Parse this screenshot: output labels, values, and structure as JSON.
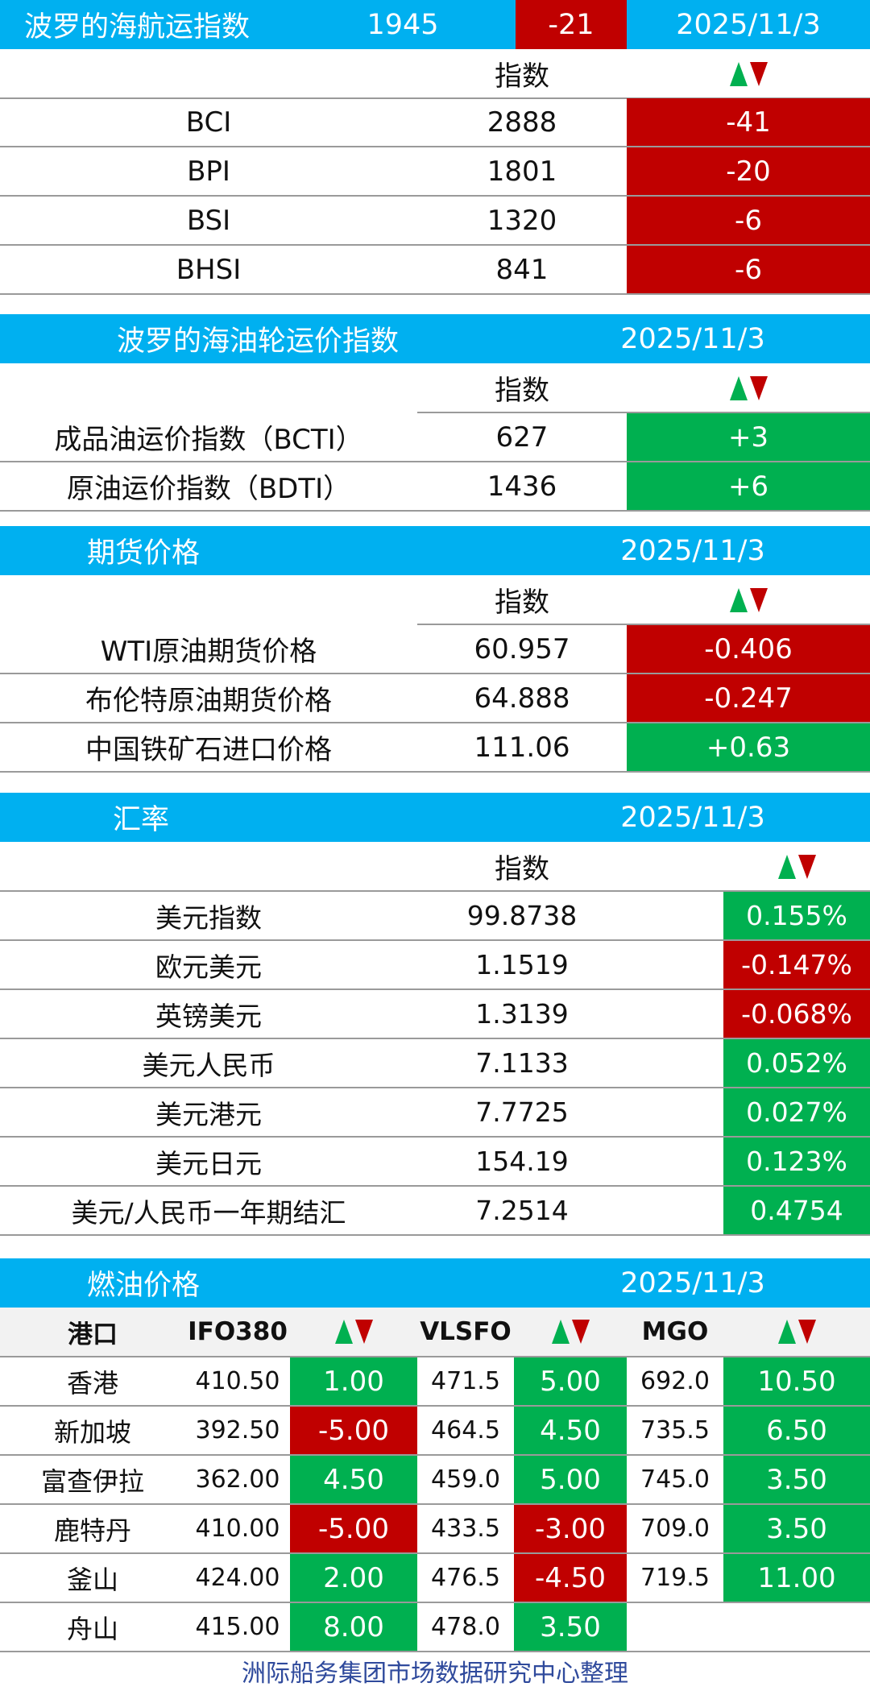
{
  "bdi": {
    "title": "波罗的海航运指数",
    "value": "1945",
    "change": "-21",
    "date": "2025/11/3",
    "col_index": "指数",
    "rows": [
      {
        "name": "BCI",
        "value": "2888",
        "change": "-41",
        "dir": "down"
      },
      {
        "name": "BPI",
        "value": "1801",
        "change": "-20",
        "dir": "down"
      },
      {
        "name": "BSI",
        "value": "1320",
        "change": "-6",
        "dir": "down"
      },
      {
        "name": "BHSI",
        "value": "841",
        "change": "-6",
        "dir": "down"
      }
    ]
  },
  "tanker": {
    "title": "波罗的海油轮运价指数",
    "date": "2025/11/3",
    "col_index": "指数",
    "rows": [
      {
        "name": "成品油运价指数（BCTI）",
        "value": "627",
        "change": "+3",
        "dir": "up"
      },
      {
        "name": "原油运价指数（BDTI）",
        "value": "1436",
        "change": "+6",
        "dir": "up"
      }
    ]
  },
  "futures": {
    "title": "期货价格",
    "date": "2025/11/3",
    "col_index": "指数",
    "rows": [
      {
        "name": "WTI原油期货价格",
        "value": "60.957",
        "change": "-0.406",
        "dir": "down"
      },
      {
        "name": "布伦特原油期货价格",
        "value": "64.888",
        "change": "-0.247",
        "dir": "down"
      },
      {
        "name": "中国铁矿石进口价格",
        "value": "111.06",
        "change": "+0.63",
        "dir": "up"
      }
    ]
  },
  "fx": {
    "title": "汇率",
    "date": "2025/11/3",
    "col_index": "指数",
    "rows": [
      {
        "name": "美元指数",
        "value": "99.8738",
        "change": "0.155%",
        "dir": "up"
      },
      {
        "name": "欧元美元",
        "value": "1.1519",
        "change": "-0.147%",
        "dir": "down"
      },
      {
        "name": "英镑美元",
        "value": "1.3139",
        "change": "-0.068%",
        "dir": "down"
      },
      {
        "name": "美元人民币",
        "value": "7.1133",
        "change": "0.052%",
        "dir": "up"
      },
      {
        "name": "美元港元",
        "value": "7.7725",
        "change": "0.027%",
        "dir": "up"
      },
      {
        "name": "美元日元",
        "value": "154.19",
        "change": "0.123%",
        "dir": "up"
      },
      {
        "name": "美元/人民币一年期结汇",
        "value": "7.2514",
        "change": "0.4754",
        "dir": "up"
      }
    ]
  },
  "fuel": {
    "title": "燃油价格",
    "date": "2025/11/3",
    "headers": {
      "port": "港口",
      "ifo": "IFO380",
      "vlsfo": "VLSFO",
      "mgo": "MGO"
    },
    "rows": [
      {
        "port": "香港",
        "ifo": "410.50",
        "ifo_chg": "1.00",
        "ifo_dir": "up",
        "vlsfo": "471.5",
        "vlsfo_chg": "5.00",
        "vlsfo_dir": "up",
        "mgo": "692.0",
        "mgo_chg": "10.50",
        "mgo_dir": "up"
      },
      {
        "port": "新加坡",
        "ifo": "392.50",
        "ifo_chg": "-5.00",
        "ifo_dir": "down",
        "vlsfo": "464.5",
        "vlsfo_chg": "4.50",
        "vlsfo_dir": "up",
        "mgo": "735.5",
        "mgo_chg": "6.50",
        "mgo_dir": "up"
      },
      {
        "port": "富查伊拉",
        "ifo": "362.00",
        "ifo_chg": "4.50",
        "ifo_dir": "up",
        "vlsfo": "459.0",
        "vlsfo_chg": "5.00",
        "vlsfo_dir": "up",
        "mgo": "745.0",
        "mgo_chg": "3.50",
        "mgo_dir": "up"
      },
      {
        "port": "鹿特丹",
        "ifo": "410.00",
        "ifo_chg": "-5.00",
        "ifo_dir": "down",
        "vlsfo": "433.5",
        "vlsfo_chg": "-3.00",
        "vlsfo_dir": "down",
        "mgo": "709.0",
        "mgo_chg": "3.50",
        "mgo_dir": "up"
      },
      {
        "port": "釜山",
        "ifo": "424.00",
        "ifo_chg": "2.00",
        "ifo_dir": "up",
        "vlsfo": "476.5",
        "vlsfo_chg": "-4.50",
        "vlsfo_dir": "down",
        "mgo": "719.5",
        "mgo_chg": "11.00",
        "mgo_dir": "up"
      },
      {
        "port": "舟山",
        "ifo": "415.00",
        "ifo_chg": "8.00",
        "ifo_dir": "up",
        "vlsfo": "478.0",
        "vlsfo_chg": "3.50",
        "vlsfo_dir": "up",
        "mgo": "",
        "mgo_chg": "",
        "mgo_dir": ""
      }
    ]
  },
  "footer": "洲际船务集团市场数据研究中心整理",
  "colors": {
    "header": "#00b0f0",
    "up": "#00b050",
    "down": "#c00000"
  }
}
